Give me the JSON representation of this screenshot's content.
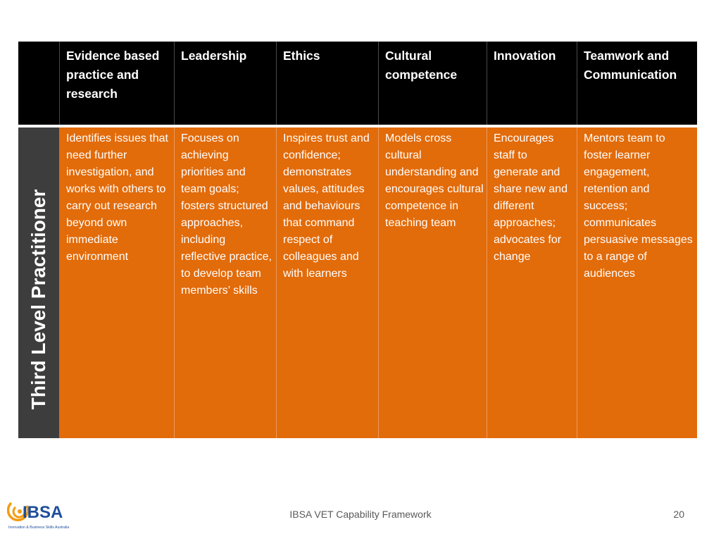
{
  "table": {
    "row_label": "Third Level Practitioner",
    "headers": [
      "Evidence based practice and research",
      "Leadership",
      "Ethics",
      "Cultural competence",
      "Innovation",
      "Teamwork and Communication"
    ],
    "cells": [
      "Identifies issues that need further investigation, and works with others to carry out research beyond own immediate environment",
      "Focuses on achieving priorities and team goals; fosters structured approaches, including reflective practice, to develop team members’ skills",
      "Inspires trust and confidence; demonstrates values, attitudes and behaviours that command respect of colleagues and with learners",
      "Models cross cultural understanding and encourages cultural competence in teaching team",
      "Encourages staff to generate and share new and different approaches; advocates for change",
      "Mentors team to foster learner engagement, retention and success; communicates persuasive messages to a range of audiences"
    ]
  },
  "footer": {
    "logo_text": "IBSA",
    "logo_tagline": "Innovation & Business Skills Australia",
    "title": "IBSA VET Capability Framework",
    "page_number": "20"
  },
  "colors": {
    "header_bg": "#000000",
    "body_bg": "#e26b0a",
    "side_bg": "#3d3d3d",
    "logo_blue": "#1f4e9c",
    "logo_orange": "#f39c12"
  }
}
